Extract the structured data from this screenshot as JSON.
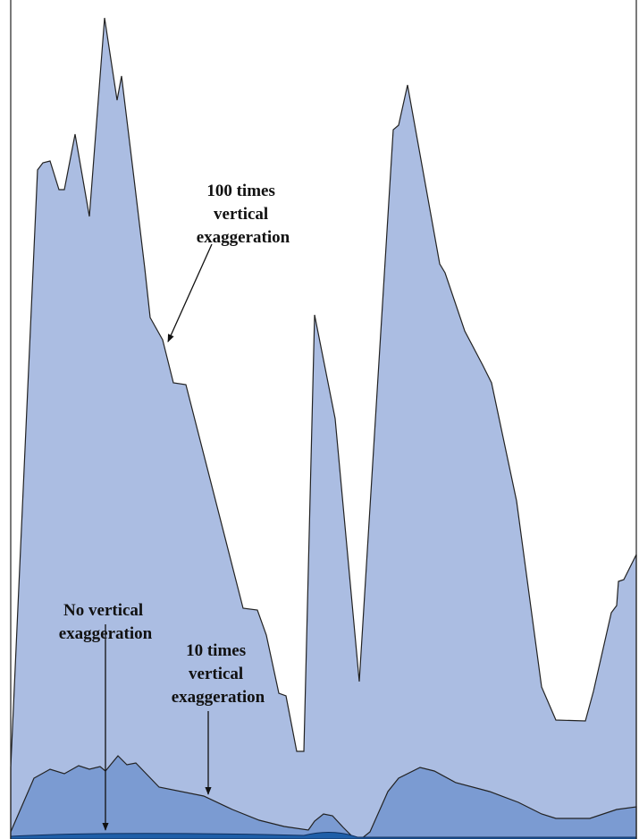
{
  "labels": [
    {
      "lines": [
        "100 times",
        "vertical",
        "exaggeration"
      ]
    },
    {
      "lines": [
        "No vertical",
        "exaggeration"
      ]
    },
    {
      "lines": [
        "10 times",
        "vertical",
        "exaggeration"
      ]
    }
  ]
}
